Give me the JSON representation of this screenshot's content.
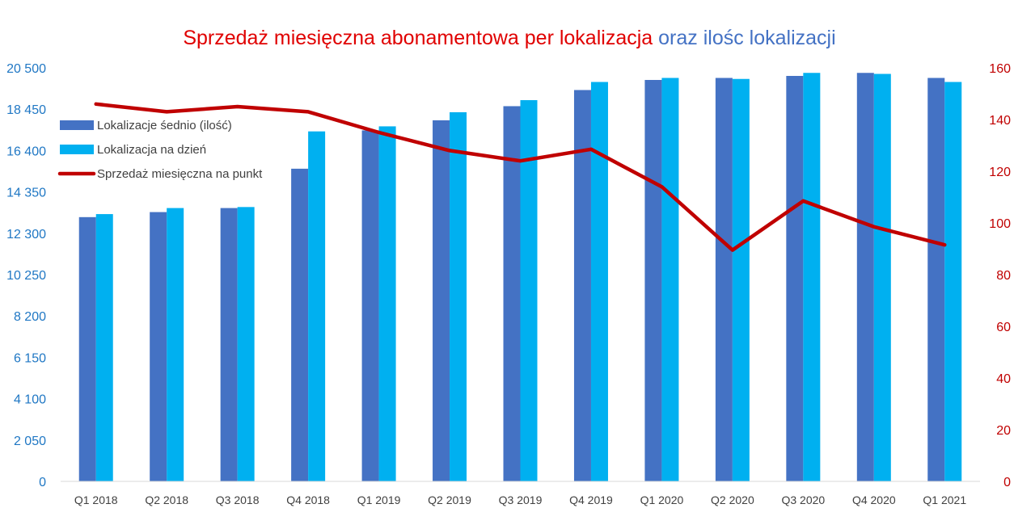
{
  "chart_data": {
    "type": "bar",
    "title": {
      "part1": "Sprzedaż miesięczna abonamentowa per lokalizacja",
      "part2": "oraz ilośc lokalizacji",
      "part1_color": "#e00000",
      "part2_color": "#4472c4"
    },
    "categories": [
      "Q1 2018",
      "Q2 2018",
      "Q3 2018",
      "Q4 2018",
      "Q1 2019",
      "Q2 2019",
      "Q3 2019",
      "Q4 2019",
      "Q1 2020",
      "Q2 2020",
      "Q3 2020",
      "Q4 2020",
      "Q1 2021"
    ],
    "y_left": {
      "ticks": [
        "0",
        "2 050",
        "4 100",
        "6 150",
        "8 200",
        "10 250",
        "12 300",
        "14 350",
        "16 400",
        "18 450",
        "20 500"
      ],
      "range": [
        0,
        20500
      ],
      "color": "#1f77c4"
    },
    "y_right": {
      "ticks": [
        "0",
        "20",
        "40",
        "60",
        "80",
        "100",
        "120",
        "140",
        "160"
      ],
      "range": [
        0,
        160
      ],
      "color": "#c00000"
    },
    "series": [
      {
        "name": "Lokalizacje śednio (ilość)",
        "type": "bar",
        "axis": "left",
        "color": "#4472c4",
        "values": [
          13100,
          13350,
          13550,
          15500,
          17400,
          17900,
          18600,
          19400,
          19900,
          20000,
          20100,
          20250,
          20000
        ]
      },
      {
        "name": "Lokalizacja na dzień",
        "type": "bar",
        "axis": "left",
        "color": "#00b0f0",
        "values": [
          13250,
          13550,
          13600,
          17350,
          17600,
          18300,
          18900,
          19800,
          20000,
          19950,
          20250,
          20200,
          19800
        ]
      },
      {
        "name": "Sprzedaż miesięczna na punkt",
        "type": "line",
        "axis": "right",
        "color": "#c00000",
        "values": [
          146,
          143,
          145,
          143,
          135,
          128,
          124,
          128.5,
          114,
          89.5,
          108.5,
          98.5,
          91.5
        ]
      }
    ],
    "legend_position": "top-left",
    "grid": false
  }
}
